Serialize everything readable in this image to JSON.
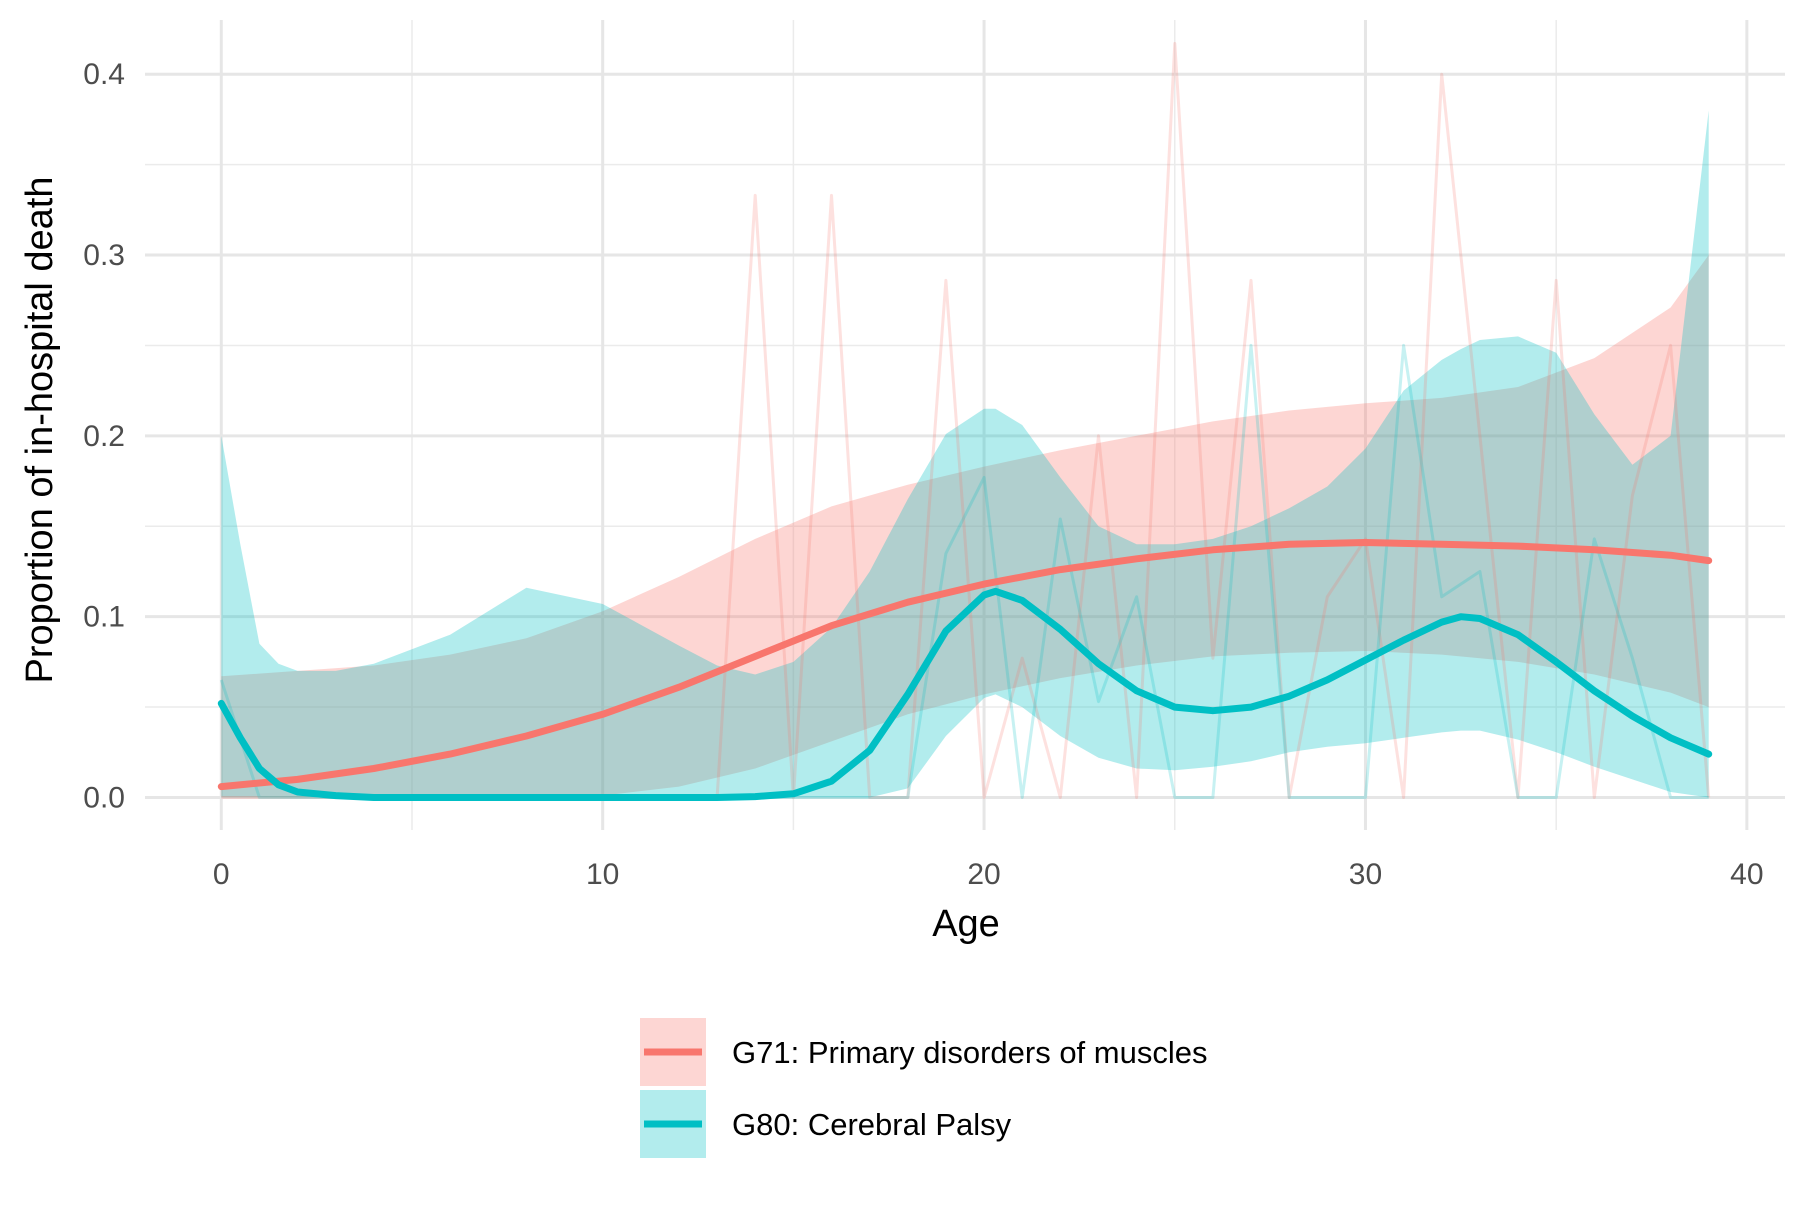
{
  "chart_data": {
    "type": "line",
    "title": "",
    "xlabel": "Age",
    "ylabel": "Proportion of in-hospital death",
    "xlim": [
      -2,
      41
    ],
    "ylim": [
      -0.018,
      0.43
    ],
    "x_ticks": [
      0,
      10,
      20,
      30,
      40
    ],
    "x_tick_labels": [
      "0",
      "10",
      "20",
      "30",
      "40"
    ],
    "y_ticks": [
      0,
      0.1,
      0.2,
      0.3,
      0.4
    ],
    "y_tick_labels": [
      "0.0",
      "0.1",
      "0.2",
      "0.3",
      "0.4"
    ],
    "grid": true,
    "legend_position": "bottom",
    "series": [
      {
        "name": "G71: Primary disorders of muscles",
        "color": "#F8766D",
        "fill_color": "#F8766D",
        "raw_x": [
          0,
          1,
          2,
          3,
          4,
          5,
          6,
          7,
          8,
          9,
          10,
          11,
          12,
          13,
          14,
          15,
          16,
          17,
          18,
          19,
          20,
          21,
          22,
          23,
          24,
          25,
          26,
          27,
          28,
          29,
          30,
          31,
          32,
          33,
          34,
          35,
          36,
          37,
          38,
          39
        ],
        "raw_y": [
          0,
          0,
          0,
          0,
          0,
          0,
          0,
          0,
          0,
          0,
          0,
          0,
          0,
          0,
          0.333,
          0,
          0.333,
          0,
          0,
          0.286,
          0,
          0.077,
          0,
          0.2,
          0,
          0.417,
          0.077,
          0.286,
          0,
          0.111,
          0.143,
          0,
          0.4,
          0.2,
          0,
          0.286,
          0,
          0.167,
          0.25,
          0
        ],
        "smooth_x": [
          0,
          2,
          4,
          6,
          8,
          10,
          12,
          14,
          16,
          18,
          20,
          22,
          24,
          26,
          28,
          30,
          32,
          34,
          36,
          38,
          39
        ],
        "smooth_y": [
          0.006,
          0.01,
          0.016,
          0.024,
          0.034,
          0.046,
          0.061,
          0.078,
          0.095,
          0.108,
          0.118,
          0.126,
          0.132,
          0.137,
          0.14,
          0.141,
          0.14,
          0.139,
          0.137,
          0.134,
          0.131
        ],
        "ci_lower": [
          0,
          0,
          0,
          0,
          0,
          0.001,
          0.006,
          0.016,
          0.031,
          0.046,
          0.057,
          0.066,
          0.073,
          0.078,
          0.08,
          0.081,
          0.079,
          0.075,
          0.068,
          0.058,
          0.05
        ],
        "ci_upper": [
          0.067,
          0.07,
          0.073,
          0.079,
          0.088,
          0.103,
          0.122,
          0.143,
          0.161,
          0.173,
          0.183,
          0.192,
          0.2,
          0.208,
          0.214,
          0.218,
          0.221,
          0.227,
          0.243,
          0.271,
          0.3
        ]
      },
      {
        "name": "G80: Cerebral Palsy",
        "color": "#00BFC4",
        "fill_color": "#00BFC4",
        "raw_x": [
          0,
          1,
          2,
          3,
          4,
          5,
          6,
          7,
          8,
          9,
          10,
          11,
          12,
          13,
          14,
          15,
          16,
          17,
          18,
          19,
          20,
          21,
          22,
          23,
          24,
          25,
          26,
          27,
          28,
          29,
          30,
          31,
          32,
          33,
          34,
          35,
          36,
          37,
          38,
          39
        ],
        "raw_y": [
          0.065,
          0,
          0,
          0,
          0,
          0,
          0,
          0,
          0,
          0,
          0,
          0,
          0,
          0,
          0,
          0,
          0,
          0,
          0,
          0.135,
          0.177,
          0,
          0.154,
          0.053,
          0.111,
          0,
          0,
          0.25,
          0,
          0,
          0,
          0.25,
          0.111,
          0.125,
          0,
          0,
          0.143,
          0.077,
          0,
          0
        ],
        "smooth_x": [
          0,
          0.5,
          1,
          1.5,
          2,
          3,
          4,
          6,
          8,
          10,
          12,
          13,
          14,
          15,
          16,
          17,
          18,
          19,
          20,
          20.3,
          21,
          22,
          23,
          24,
          25,
          26,
          27,
          28,
          29,
          30,
          31,
          32,
          32.5,
          33,
          34,
          35,
          36,
          37,
          38,
          39
        ],
        "smooth_y": [
          0.052,
          0.033,
          0.016,
          0.007,
          0.003,
          0.001,
          0,
          0,
          0,
          0,
          0,
          0,
          0.0005,
          0.002,
          0.009,
          0.026,
          0.057,
          0.092,
          0.112,
          0.114,
          0.109,
          0.093,
          0.074,
          0.059,
          0.05,
          0.048,
          0.05,
          0.056,
          0.065,
          0.076,
          0.087,
          0.097,
          0.1,
          0.099,
          0.09,
          0.075,
          0.059,
          0.045,
          0.033,
          0.024
        ],
        "ci_lower": [
          0,
          0,
          0,
          0,
          0,
          0,
          0,
          0,
          0,
          0,
          0,
          0,
          0,
          0,
          0,
          0,
          0.005,
          0.034,
          0.055,
          0.057,
          0.05,
          0.034,
          0.022,
          0.016,
          0.015,
          0.017,
          0.02,
          0.025,
          0.028,
          0.03,
          0.033,
          0.036,
          0.037,
          0.037,
          0.032,
          0.025,
          0.017,
          0.01,
          0.003,
          0
        ],
        "ci_upper": [
          0.2,
          0.14,
          0.085,
          0.074,
          0.07,
          0.07,
          0.074,
          0.09,
          0.116,
          0.107,
          0.084,
          0.073,
          0.068,
          0.075,
          0.094,
          0.125,
          0.165,
          0.201,
          0.215,
          0.215,
          0.206,
          0.177,
          0.15,
          0.14,
          0.14,
          0.143,
          0.15,
          0.16,
          0.172,
          0.193,
          0.225,
          0.242,
          0.248,
          0.253,
          0.255,
          0.246,
          0.212,
          0.184,
          0.2,
          0.38
        ]
      }
    ]
  }
}
